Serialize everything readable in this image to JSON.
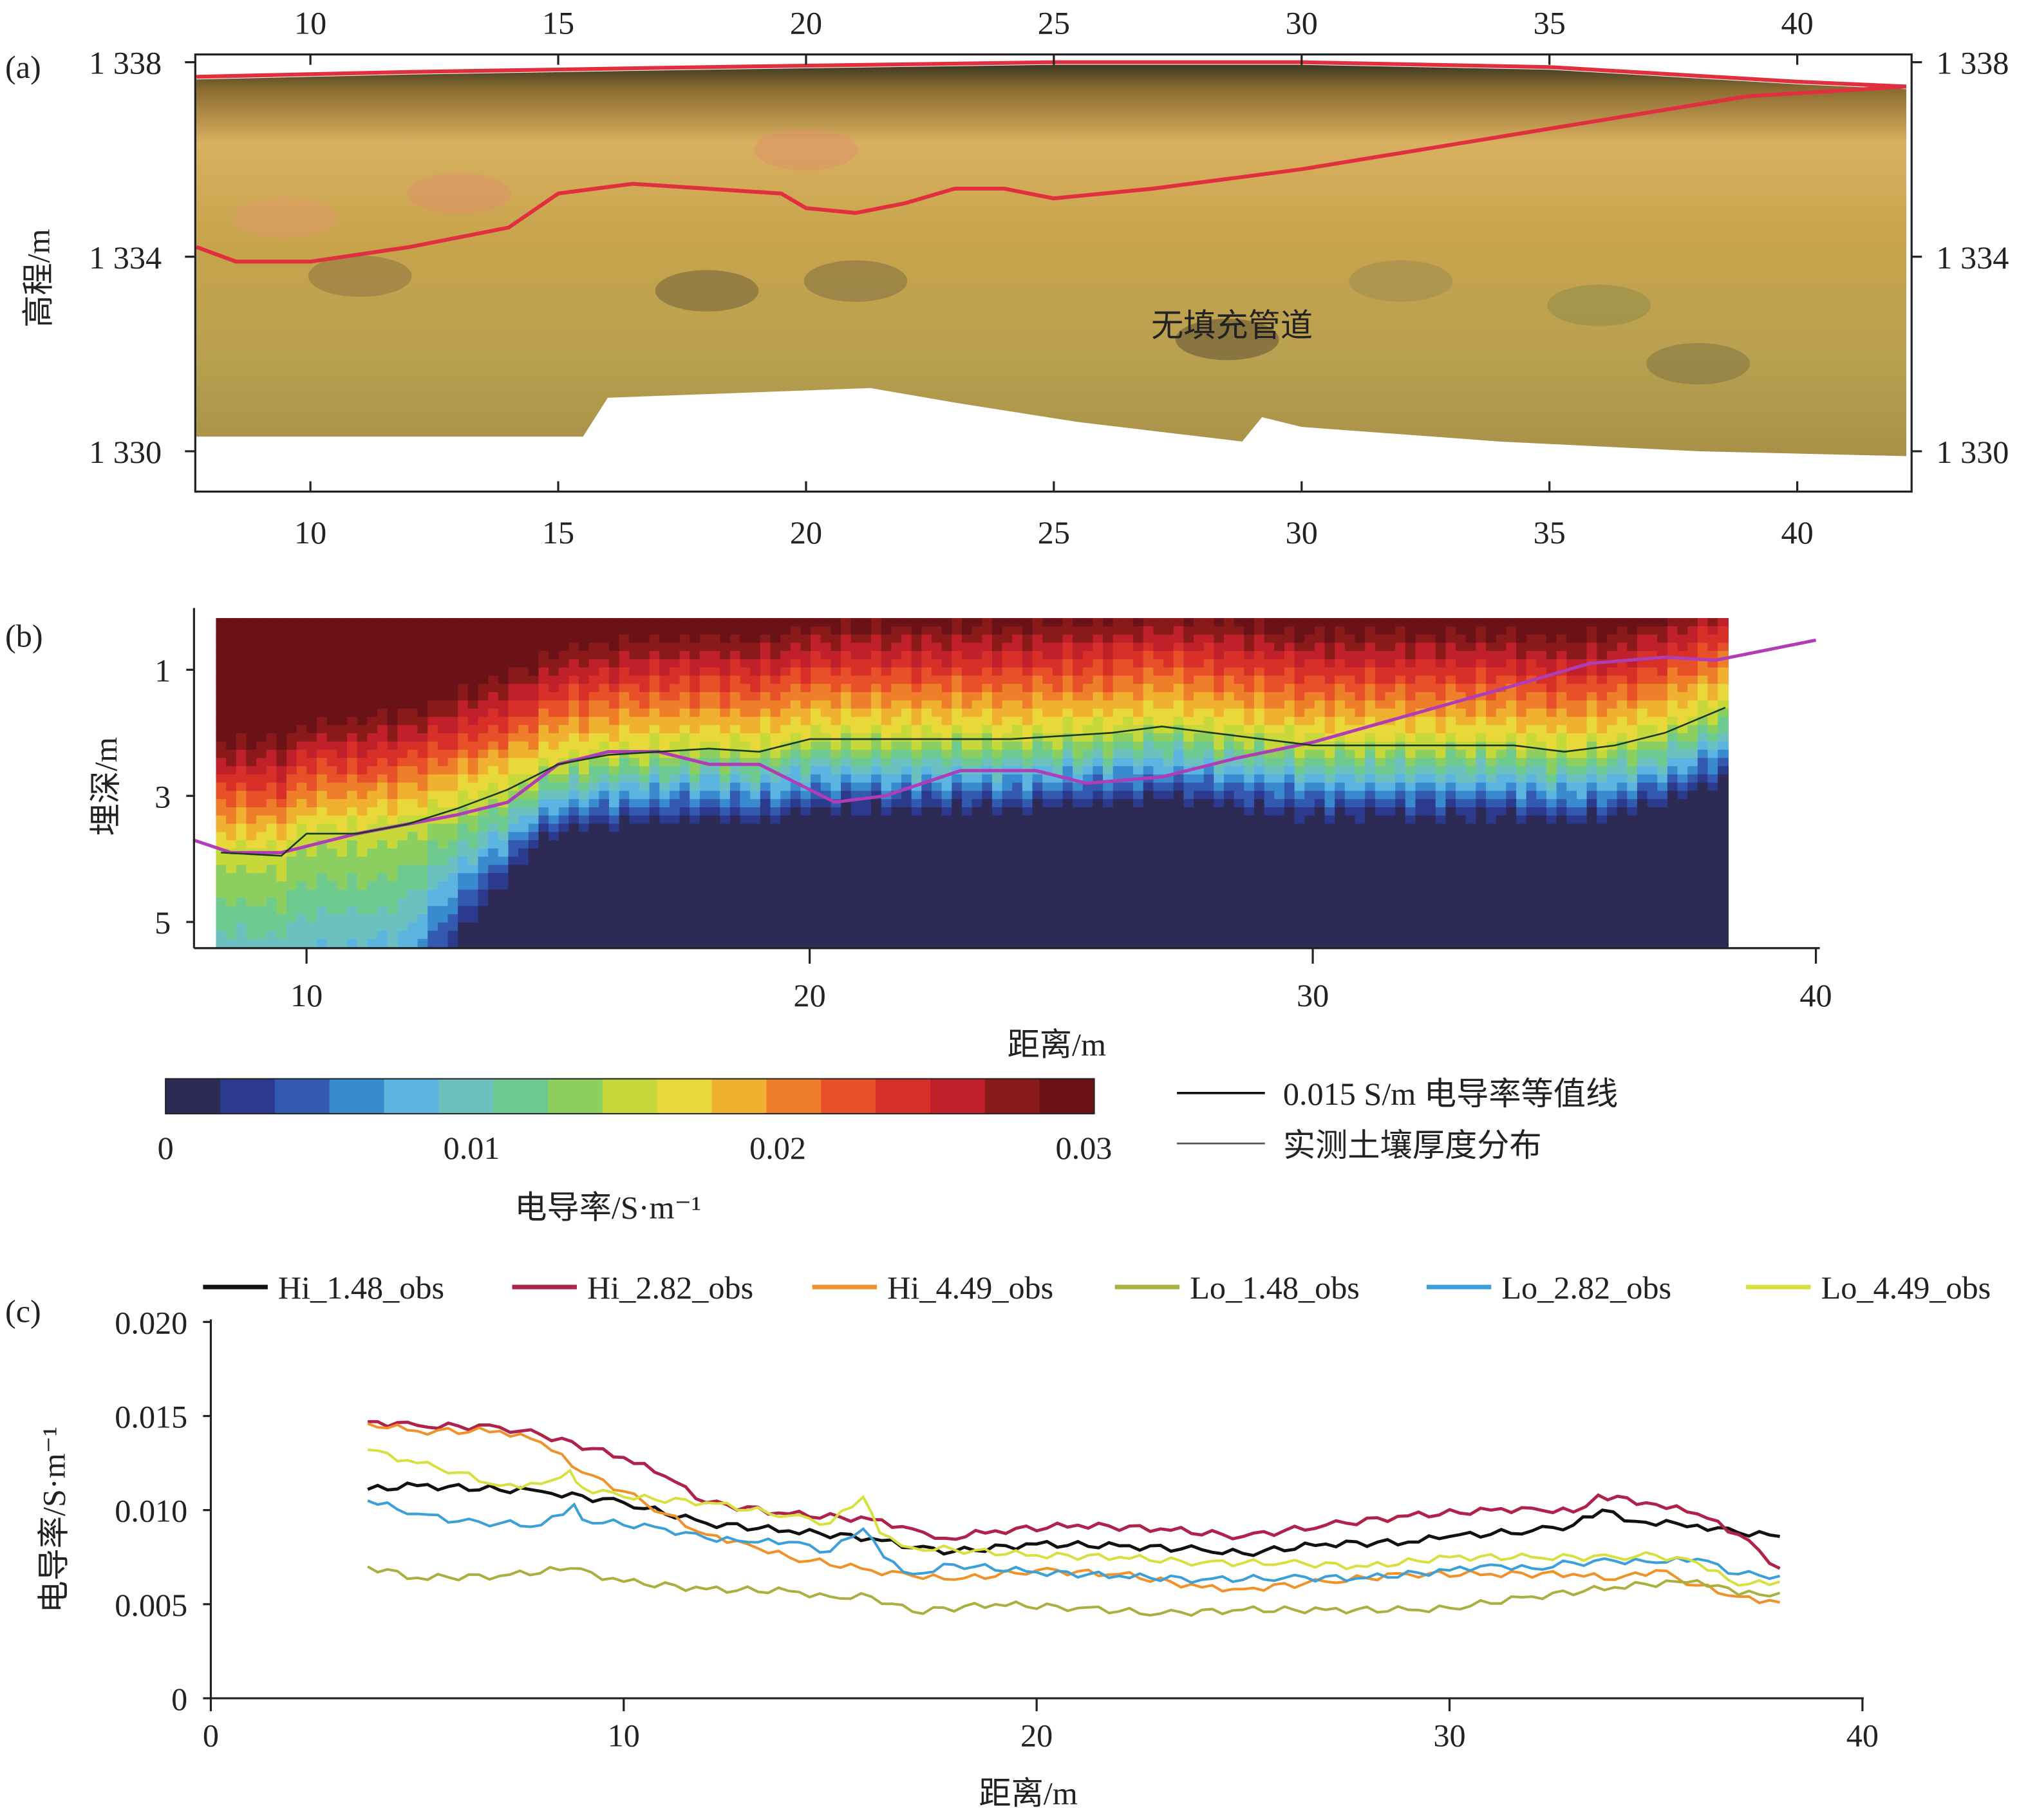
{
  "chart_data": [
    {
      "panel": "(a)",
      "type": "image",
      "xticks": [
        "10",
        "15",
        "20",
        "25",
        "30",
        "35",
        "40"
      ],
      "xtick_values": [
        10,
        15,
        20,
        25,
        30,
        35,
        40
      ],
      "yticks": [
        "1 338",
        "1 334",
        "1 330"
      ],
      "ytick_values": [
        1338,
        1334,
        1330
      ],
      "ylabel": "高程/m",
      "xlim": [
        7.7,
        42.3
      ],
      "ylim": [
        1329.2,
        1338.2
      ],
      "annotation": "无填充管道",
      "surface_line": [
        [
          7.7,
          1337.7
        ],
        [
          12,
          1337.8
        ],
        [
          18,
          1337.9
        ],
        [
          25,
          1338.0
        ],
        [
          30,
          1338.0
        ],
        [
          35,
          1337.9
        ],
        [
          40,
          1337.6
        ],
        [
          42.2,
          1337.5
        ]
      ],
      "soil_bottom_line": [
        [
          7.7,
          1334.2
        ],
        [
          8.5,
          1333.9
        ],
        [
          10,
          1333.9
        ],
        [
          12,
          1334.2
        ],
        [
          14,
          1334.6
        ],
        [
          15,
          1335.3
        ],
        [
          16.5,
          1335.5
        ],
        [
          18,
          1335.4
        ],
        [
          19.5,
          1335.3
        ],
        [
          20,
          1335.0
        ],
        [
          21,
          1334.9
        ],
        [
          22,
          1335.1
        ],
        [
          23,
          1335.4
        ],
        [
          24,
          1335.4
        ],
        [
          25,
          1335.2
        ],
        [
          27,
          1335.4
        ],
        [
          30,
          1335.8
        ],
        [
          33,
          1336.3
        ],
        [
          36,
          1336.8
        ],
        [
          39,
          1337.3
        ],
        [
          42.2,
          1337.5
        ]
      ]
    },
    {
      "panel": "(b)",
      "type": "heatmap",
      "xlabel": "距离/m",
      "ylabel": "埋深/m",
      "xticks": [
        "10",
        "20",
        "30",
        "40"
      ],
      "xtick_values": [
        10,
        20,
        30,
        40
      ],
      "yticks": [
        "1",
        "3",
        "5"
      ],
      "ytick_values": [
        1,
        3,
        5
      ],
      "xlim": [
        7.75,
        40
      ],
      "ylim": [
        0,
        5.5
      ],
      "data_xrange": [
        8.2,
        38.25
      ],
      "data_depthrange": [
        0.18,
        5.4
      ],
      "colorbar": {
        "label": "电导率/S·m⁻¹",
        "ticks": [
          "0",
          "0.01",
          "0.02",
          "0.03"
        ],
        "tick_values": [
          0,
          0.01,
          0.02,
          0.03
        ],
        "range": [
          0,
          0.03
        ],
        "colors": [
          "#2d2a55",
          "#2b3a8c",
          "#3459b0",
          "#3a8ad0",
          "#5bb5e0",
          "#6cc0c0",
          "#6fca90",
          "#8ccf60",
          "#c6d83a",
          "#e8d83a",
          "#f0b030",
          "#ef7e2a",
          "#e8502a",
          "#d83028",
          "#c0202a",
          "#8a1a1a",
          "#6a1218"
        ]
      },
      "contour_0015": [
        [
          8.3,
          3.9
        ],
        [
          9.5,
          3.95
        ],
        [
          10,
          3.6
        ],
        [
          11,
          3.6
        ],
        [
          12,
          3.45
        ],
        [
          13,
          3.2
        ],
        [
          14,
          2.9
        ],
        [
          15,
          2.5
        ],
        [
          16,
          2.35
        ],
        [
          17,
          2.3
        ],
        [
          18,
          2.25
        ],
        [
          19,
          2.3
        ],
        [
          20,
          2.1
        ],
        [
          22,
          2.1
        ],
        [
          24,
          2.1
        ],
        [
          26,
          2.0
        ],
        [
          27,
          1.9
        ],
        [
          28,
          2.0
        ],
        [
          29,
          2.1
        ],
        [
          30,
          2.2
        ],
        [
          32,
          2.2
        ],
        [
          34,
          2.2
        ],
        [
          35,
          2.3
        ],
        [
          36,
          2.2
        ],
        [
          37,
          2.0
        ],
        [
          38.2,
          1.6
        ]
      ],
      "soil_thickness": [
        [
          7.75,
          3.7
        ],
        [
          8.5,
          3.9
        ],
        [
          9.5,
          3.9
        ],
        [
          11,
          3.6
        ],
        [
          13,
          3.3
        ],
        [
          14,
          3.1
        ],
        [
          15,
          2.5
        ],
        [
          16,
          2.3
        ],
        [
          17,
          2.3
        ],
        [
          18,
          2.5
        ],
        [
          19,
          2.5
        ],
        [
          20.5,
          3.1
        ],
        [
          21.5,
          3.0
        ],
        [
          23,
          2.6
        ],
        [
          24.5,
          2.6
        ],
        [
          25.5,
          2.8
        ],
        [
          27,
          2.7
        ],
        [
          28.5,
          2.4
        ],
        [
          30,
          2.15
        ],
        [
          32,
          1.7
        ],
        [
          34,
          1.25
        ],
        [
          35.5,
          0.9
        ],
        [
          37,
          0.8
        ],
        [
          38,
          0.85
        ],
        [
          40,
          0.53
        ]
      ],
      "legend": [
        {
          "label": "0.015 S/m 电导率等值线",
          "color": "#111111"
        },
        {
          "label": "实测土壤厚度分布",
          "color": "#555555"
        }
      ]
    },
    {
      "panel": "(c)",
      "type": "line",
      "xlabel": "距离/m",
      "ylabel": "电导率/S·m⁻¹",
      "xticks": [
        "0",
        "10",
        "20",
        "30",
        "40"
      ],
      "xtick_values": [
        0,
        10,
        20,
        30,
        40
      ],
      "yticks": [
        "0",
        "0.005",
        "0.010",
        "0.015",
        "0.020"
      ],
      "ytick_values": [
        0,
        0.005,
        0.01,
        0.015,
        0.02
      ],
      "xlim": [
        0,
        40
      ],
      "ylim": [
        0,
        0.02
      ],
      "legend_position": "top",
      "series": [
        {
          "name": "Hi_1.48_obs",
          "color": "#111111",
          "points": [
            [
              3.8,
              0.0111
            ],
            [
              5,
              0.0113
            ],
            [
              8,
              0.011
            ],
            [
              10,
              0.0104
            ],
            [
              12,
              0.0093
            ],
            [
              14,
              0.0089
            ],
            [
              16,
              0.0085
            ],
            [
              17,
              0.008
            ],
            [
              18,
              0.0078
            ],
            [
              20,
              0.0082
            ],
            [
              22,
              0.0081
            ],
            [
              24,
              0.0079
            ],
            [
              25,
              0.0077
            ],
            [
              27,
              0.0082
            ],
            [
              29,
              0.0083
            ],
            [
              30,
              0.0086
            ],
            [
              32,
              0.0089
            ],
            [
              33,
              0.0092
            ],
            [
              33.7,
              0.01
            ],
            [
              34.5,
              0.0094
            ],
            [
              35.5,
              0.0093
            ],
            [
              36,
              0.0092
            ],
            [
              37,
              0.0088
            ],
            [
              38,
              0.0086
            ]
          ]
        },
        {
          "name": "Hi_2.82_obs",
          "color": "#b0224a",
          "points": [
            [
              3.8,
              0.0147
            ],
            [
              5,
              0.0145
            ],
            [
              7,
              0.0144
            ],
            [
              8,
              0.014
            ],
            [
              10,
              0.0128
            ],
            [
              11,
              0.0118
            ],
            [
              12,
              0.0104
            ],
            [
              14,
              0.0098
            ],
            [
              16,
              0.0095
            ],
            [
              17,
              0.009
            ],
            [
              17.8,
              0.0085
            ],
            [
              19,
              0.0089
            ],
            [
              21,
              0.0092
            ],
            [
              23,
              0.009
            ],
            [
              25,
              0.0086
            ],
            [
              27,
              0.0092
            ],
            [
              29,
              0.0097
            ],
            [
              31,
              0.01
            ],
            [
              32,
              0.0101
            ],
            [
              33,
              0.0099
            ],
            [
              33.6,
              0.0108
            ],
            [
              35,
              0.0103
            ],
            [
              36,
              0.0098
            ],
            [
              37,
              0.0087
            ],
            [
              38,
              0.0069
            ]
          ]
        },
        {
          "name": "Hi_4.49_obs",
          "color": "#f0922a",
          "points": [
            [
              3.8,
              0.0146
            ],
            [
              5,
              0.0142
            ],
            [
              7,
              0.0142
            ],
            [
              8,
              0.0136
            ],
            [
              9,
              0.012
            ],
            [
              10,
              0.011
            ],
            [
              11,
              0.0098
            ],
            [
              12,
              0.0087
            ],
            [
              13,
              0.0082
            ],
            [
              14,
              0.0075
            ],
            [
              16,
              0.0068
            ],
            [
              17,
              0.0065
            ],
            [
              18,
              0.0063
            ],
            [
              20,
              0.0068
            ],
            [
              22,
              0.0066
            ],
            [
              24,
              0.0059
            ],
            [
              25,
              0.0058
            ],
            [
              27,
              0.0062
            ],
            [
              29,
              0.0066
            ],
            [
              31,
              0.0066
            ],
            [
              33,
              0.0066
            ],
            [
              34,
              0.0063
            ],
            [
              35,
              0.0068
            ],
            [
              36,
              0.006
            ],
            [
              37,
              0.0054
            ],
            [
              38,
              0.0051
            ]
          ]
        },
        {
          "name": "Lo_1.48_obs",
          "color": "#a9b040",
          "points": [
            [
              3.8,
              0.007
            ],
            [
              5,
              0.0064
            ],
            [
              7,
              0.0065
            ],
            [
              8.7,
              0.0069
            ],
            [
              10,
              0.0062
            ],
            [
              12,
              0.0058
            ],
            [
              14,
              0.0057
            ],
            [
              15,
              0.0054
            ],
            [
              16,
              0.0054
            ],
            [
              17,
              0.0046
            ],
            [
              19,
              0.005
            ],
            [
              21,
              0.0048
            ],
            [
              23,
              0.0045
            ],
            [
              25,
              0.0047
            ],
            [
              27,
              0.0047
            ],
            [
              29,
              0.0047
            ],
            [
              30,
              0.0048
            ],
            [
              32,
              0.0054
            ],
            [
              34,
              0.0059
            ],
            [
              35.5,
              0.0062
            ],
            [
              36.5,
              0.006
            ],
            [
              37,
              0.0055
            ],
            [
              38,
              0.0056
            ]
          ]
        },
        {
          "name": "Lo_2.82_obs",
          "color": "#3ca0d8",
          "points": [
            [
              3.8,
              0.0105
            ],
            [
              5,
              0.0098
            ],
            [
              6,
              0.0094
            ],
            [
              7,
              0.0093
            ],
            [
              8,
              0.0092
            ],
            [
              8.8,
              0.0103
            ],
            [
              9,
              0.0095
            ],
            [
              11,
              0.009
            ],
            [
              12,
              0.0085
            ],
            [
              13,
              0.0083
            ],
            [
              14,
              0.0083
            ],
            [
              15,
              0.0078
            ],
            [
              15.8,
              0.009
            ],
            [
              16.3,
              0.0075
            ],
            [
              17,
              0.0066
            ],
            [
              18,
              0.0071
            ],
            [
              20,
              0.0067
            ],
            [
              22,
              0.0065
            ],
            [
              24,
              0.0063
            ],
            [
              26,
              0.0064
            ],
            [
              28,
              0.0064
            ],
            [
              30,
              0.0068
            ],
            [
              31,
              0.0071
            ],
            [
              32,
              0.0069
            ],
            [
              33,
              0.0072
            ],
            [
              34,
              0.0073
            ],
            [
              35,
              0.0072
            ],
            [
              36,
              0.0074
            ],
            [
              37,
              0.0066
            ],
            [
              38,
              0.0065
            ]
          ]
        },
        {
          "name": "Lo_4.49_obs",
          "color": "#d8e040",
          "points": [
            [
              3.8,
              0.0132
            ],
            [
              5,
              0.0125
            ],
            [
              6,
              0.012
            ],
            [
              7,
              0.0113
            ],
            [
              8,
              0.0114
            ],
            [
              8.7,
              0.0121
            ],
            [
              9,
              0.0112
            ],
            [
              10,
              0.0107
            ],
            [
              12,
              0.0104
            ],
            [
              14,
              0.0097
            ],
            [
              15,
              0.0093
            ],
            [
              15.8,
              0.0107
            ],
            [
              16.2,
              0.0088
            ],
            [
              17,
              0.008
            ],
            [
              18,
              0.0079
            ],
            [
              20,
              0.0076
            ],
            [
              22,
              0.0075
            ],
            [
              24,
              0.0072
            ],
            [
              26,
              0.0072
            ],
            [
              28,
              0.007
            ],
            [
              30,
              0.0075
            ],
            [
              32,
              0.0075
            ],
            [
              34,
              0.0075
            ],
            [
              35,
              0.0076
            ],
            [
              36,
              0.0072
            ],
            [
              37,
              0.006
            ],
            [
              38,
              0.0062
            ]
          ]
        }
      ]
    }
  ]
}
